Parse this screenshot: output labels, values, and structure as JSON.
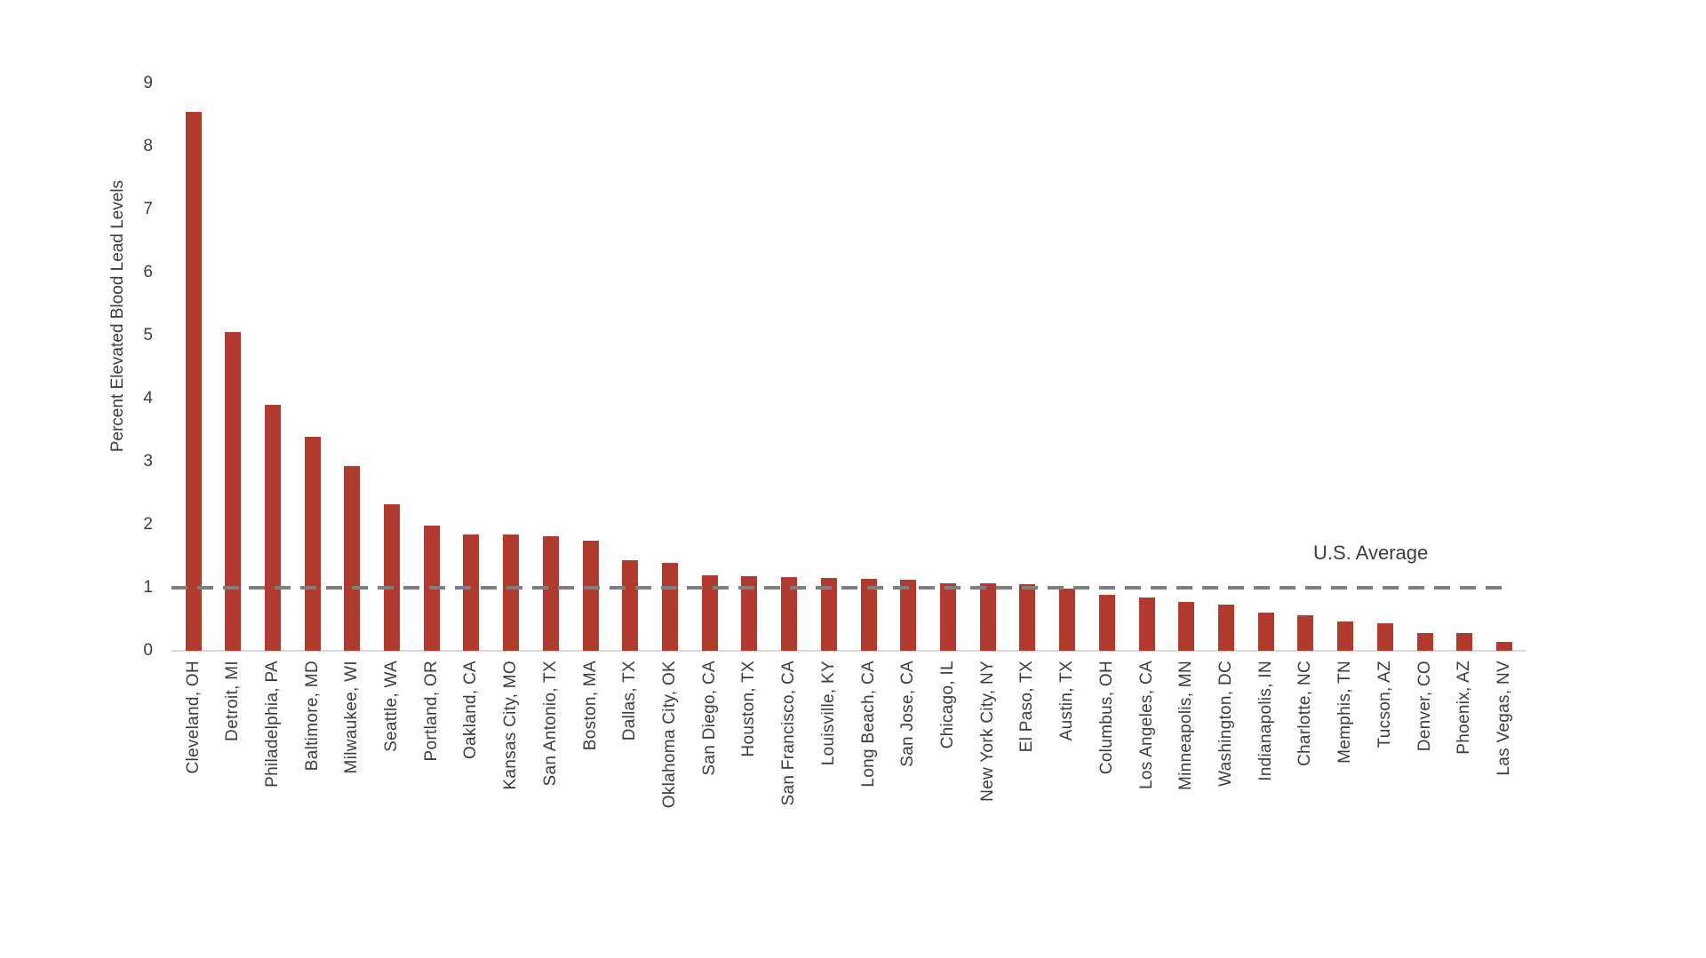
{
  "page": {
    "background_color": "#ffffff",
    "text_color": "#3d3d3d"
  },
  "chart_data": {
    "type": "bar",
    "title": "",
    "xlabel": "",
    "ylabel": "Percent Elevated Blood Lead Levels",
    "ylim": [
      0,
      9
    ],
    "yticks": [
      0,
      1,
      2,
      3,
      4,
      5,
      6,
      7,
      8,
      9
    ],
    "grid": false,
    "legend": "none",
    "bar_color": "#b03a2e",
    "baseline_color": "#d9d9d9",
    "reference_line": {
      "value": 1,
      "label": "U.S. Average",
      "style": "dashed",
      "color": "#7f7f7f"
    },
    "categories": [
      "Cleveland, OH",
      "Detroit, MI",
      "Philadelphia, PA",
      "Baltimore, MD",
      "Milwaukee, WI",
      "Seattle, WA",
      "Portland, OR",
      "Oakland, CA",
      "Kansas City, MO",
      "San Antonio, TX",
      "Boston, MA",
      "Dallas, TX",
      "Oklahoma City, OK",
      "San Diego, CA",
      "Houston, TX",
      "San Francisco, CA",
      "Louisville, KY",
      "Long Beach, CA",
      "San Jose, CA",
      "Chicago, IL",
      "New York City, NY",
      "El Paso, TX",
      "Austin, TX",
      "Columbus, OH",
      "Los Angeles, CA",
      "Minneapolis, MN",
      "Washington, DC",
      "Indianapolis, IN",
      "Charlotte, NC",
      "Memphis, TN",
      "Tucson, AZ",
      "Denver, CO",
      "Phoenix, AZ",
      "Las Vegas, NV"
    ],
    "values": [
      8.55,
      5.05,
      3.9,
      3.4,
      2.93,
      2.33,
      1.98,
      1.85,
      1.84,
      1.82,
      1.74,
      1.43,
      1.39,
      1.2,
      1.18,
      1.17,
      1.15,
      1.14,
      1.13,
      1.07,
      1.07,
      1.06,
      0.98,
      0.89,
      0.85,
      0.77,
      0.73,
      0.61,
      0.56,
      0.46,
      0.43,
      0.28,
      0.28,
      0.14
    ]
  }
}
